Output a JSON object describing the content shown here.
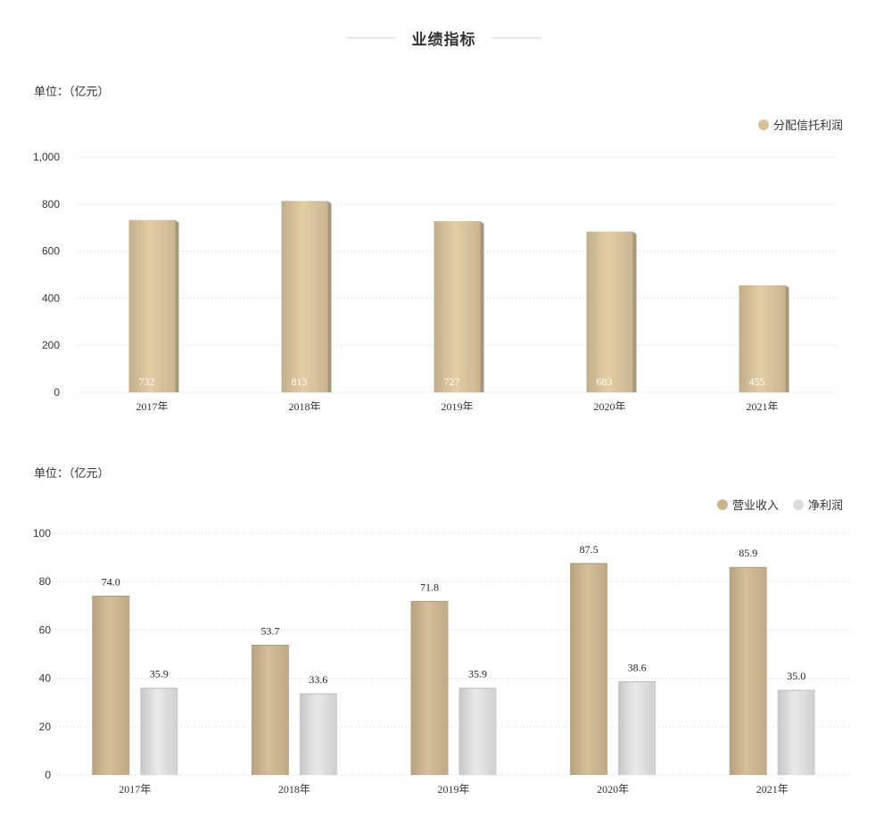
{
  "header": {
    "title": "业绩指标"
  },
  "chart_data": [
    {
      "type": "bar",
      "unit_label": "单位：（亿元）",
      "categories": [
        "2017年",
        "2018年",
        "2019年",
        "2020年",
        "2021年"
      ],
      "series": [
        {
          "name": "分配信托利润",
          "values": [
            732,
            813,
            727,
            683,
            455
          ],
          "color": "#d6c19a"
        }
      ],
      "yticks": [
        "0",
        "200",
        "400",
        "600",
        "800",
        "1,000"
      ],
      "ylim": [
        0,
        1000
      ],
      "legend": "top-right",
      "data_labels": "inside-bottom",
      "grid": true
    },
    {
      "type": "bar",
      "unit_label": "单位：（亿元）",
      "categories": [
        "2017年",
        "2018年",
        "2019年",
        "2020年",
        "2021年"
      ],
      "series": [
        {
          "name": "营业收入",
          "values": [
            74.0,
            53.7,
            71.8,
            87.5,
            85.9
          ],
          "labels": [
            "74.0",
            "53.7",
            "71.8",
            "87.5",
            "85.9"
          ],
          "color": "#c9b48e"
        },
        {
          "name": "净利润",
          "values": [
            35.9,
            33.6,
            35.9,
            38.6,
            35.0
          ],
          "labels": [
            "35.9",
            "33.6",
            "35.9",
            "38.6",
            "35.0"
          ],
          "color": "#dcdcdc"
        }
      ],
      "yticks": [
        "0",
        "20",
        "40",
        "60",
        "80",
        "100"
      ],
      "ylim": [
        0,
        100
      ],
      "legend": "top-right",
      "data_labels": "above",
      "grid": true
    }
  ]
}
